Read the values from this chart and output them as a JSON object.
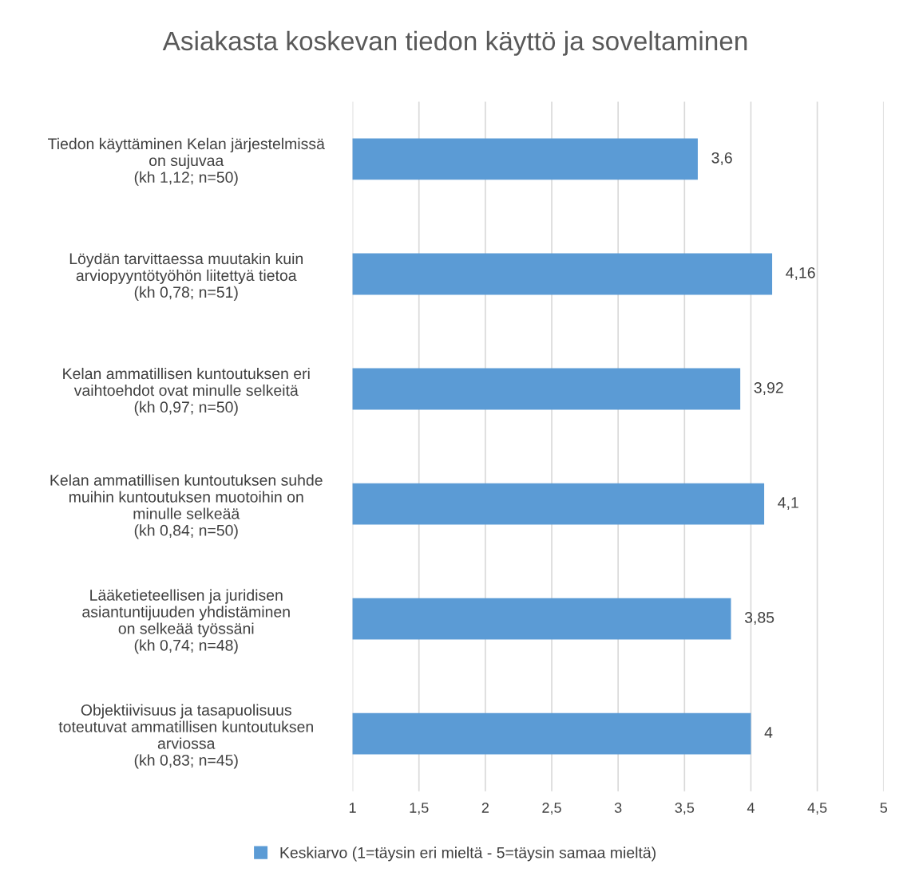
{
  "chart_data": {
    "type": "bar",
    "orientation": "horizontal",
    "title": "Asiakasta koskevan tiedon käyttö ja soveltaminen",
    "categories": [
      "Tiedon käyttäminen Kelan järjestelmissä\non sujuvaa\n(kh 1,12; n=50)",
      "Löydän tarvittaessa muutakin kuin\narviopyyntötyöhön liitettyä tietoa\n(kh 0,78; n=51)",
      "Kelan ammatillisen kuntoutuksen eri\nvaihtoehdot ovat minulle selkeitä\n(kh 0,97; n=50)",
      "Kelan ammatillisen kuntoutuksen suhde\nmuihin kuntoutuksen muotoihin on\nminulle selkeää\n(kh 0,84; n=50)",
      "Lääketieteellisen ja juridisen\nasiantuntijuuden yhdistäminen\non selkeää työssäni\n(kh 0,74; n=48)",
      "Objektiivisuus ja tasapuolisuus\ntoteutuvat ammatillisen kuntoutuksen\narviossa\n(kh 0,83; n=45)"
    ],
    "series": [
      {
        "name": "Keskiarvo (1=täysin eri mieltä - 5=täysin samaa mieltä)",
        "color": "#5b9bd5",
        "values": [
          3.6,
          4.16,
          3.92,
          4.1,
          3.85,
          4
        ],
        "value_labels": [
          "3,6",
          "4,16",
          "3,92",
          "4,1",
          "3,85",
          "4"
        ]
      }
    ],
    "xlim": [
      1,
      5
    ],
    "xticks": [
      1,
      {
        "value": 1.5,
        "label": "1,5"
      },
      2,
      {
        "value": 2.5,
        "label": "2,5"
      },
      3,
      {
        "value": 3.5,
        "label": "3,5"
      },
      4,
      {
        "value": 4.5,
        "label": "4,5"
      },
      5
    ],
    "grid": "x",
    "legend": "bottom"
  }
}
